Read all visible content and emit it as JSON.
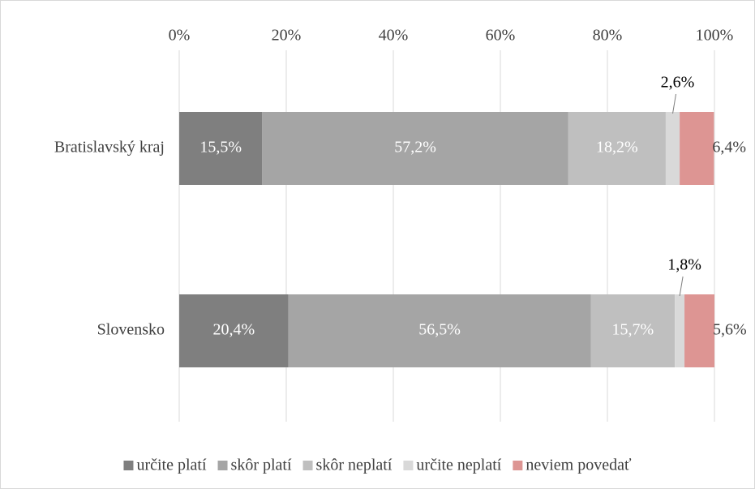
{
  "chart_data": {
    "type": "stacked_barh",
    "categories": [
      "Bratislavský kraj",
      "Slovensko"
    ],
    "series": [
      {
        "name": "určite platí",
        "color": "#7f7f7f",
        "values": [
          15.5,
          20.4
        ],
        "value_labels": [
          "15,5%",
          "20,4%"
        ]
      },
      {
        "name": "skôr platí",
        "color": "#a5a5a5",
        "values": [
          57.2,
          56.5
        ],
        "value_labels": [
          "57,2%",
          "56,5%"
        ]
      },
      {
        "name": "skôr neplatí",
        "color": "#bfbfbf",
        "values": [
          18.2,
          15.7
        ],
        "value_labels": [
          "18,2%",
          "15,7%"
        ]
      },
      {
        "name": "určite neplatí",
        "color": "#d9d9d9",
        "values": [
          2.6,
          1.8
        ],
        "value_labels": [
          "2,6%",
          "1,8%"
        ]
      },
      {
        "name": "neviem povedať",
        "color": "#dd9593",
        "values": [
          6.4,
          5.6
        ],
        "value_labels": [
          "6,4%",
          "5,6%"
        ]
      }
    ],
    "xlim": [
      0,
      100
    ],
    "xticks": [
      {
        "value": 0,
        "label": "0%"
      },
      {
        "value": 20,
        "label": "20%"
      },
      {
        "value": 40,
        "label": "40%"
      },
      {
        "value": 60,
        "label": "60%"
      },
      {
        "value": 80,
        "label": "80%"
      },
      {
        "value": 100,
        "label": "100%"
      }
    ],
    "grid": true,
    "legend": "bottom"
  }
}
